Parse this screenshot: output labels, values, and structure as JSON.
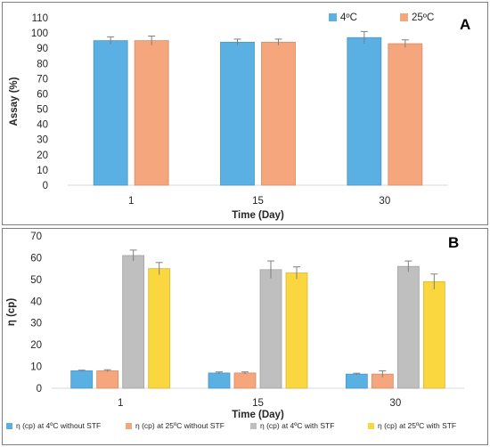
{
  "chart_data": [
    {
      "type": "bar",
      "panel": "A",
      "categories": [
        "1",
        "15",
        "30"
      ],
      "series": [
        {
          "name": "4ºC",
          "values": [
            95,
            94,
            97
          ],
          "errors": [
            2.5,
            2,
            4
          ],
          "color": "#5aafe3"
        },
        {
          "name": "25ºC",
          "values": [
            95,
            94,
            93
          ],
          "errors": [
            3,
            2,
            2.5
          ],
          "color": "#f6a67c"
        }
      ],
      "xlabel": "Time (Day)",
      "ylabel": "Assay (%)",
      "ylim": [
        0,
        110
      ],
      "yticks": [
        "0",
        "10",
        "20",
        "30",
        "40",
        "50",
        "60",
        "70",
        "80",
        "90",
        "100",
        "110"
      ],
      "grid": false,
      "legend": "top-right"
    },
    {
      "type": "bar",
      "panel": "B",
      "categories": [
        "1",
        "15",
        "30"
      ],
      "series": [
        {
          "name": "η (cp) at 4ºC without STF",
          "values": [
            8,
            7,
            6.5
          ],
          "errors": [
            0.3,
            0.5,
            0.4
          ],
          "color": "#5aafe3"
        },
        {
          "name": "η (cp) at 25ºC without STF",
          "values": [
            8,
            7,
            6.5
          ],
          "errors": [
            0.5,
            0.5,
            1.5
          ],
          "color": "#f6a67c"
        },
        {
          "name": "η (cp) at 4ºC with STF",
          "values": [
            61,
            54.5,
            56
          ],
          "errors": [
            2.5,
            4,
            2.5
          ],
          "color": "#bfbfbf"
        },
        {
          "name": "η (cp) at 25ºC with STF",
          "values": [
            55,
            53,
            49
          ],
          "errors": [
            2.8,
            2.8,
            3.5
          ],
          "color": "#fad73f"
        }
      ],
      "xlabel": "Time (Day)",
      "ylabel": "η (cp)",
      "ylim": [
        0,
        70
      ],
      "yticks": [
        "0",
        "10",
        "20",
        "30",
        "40",
        "50",
        "60",
        "70"
      ],
      "grid": false,
      "legend": "bottom"
    }
  ]
}
